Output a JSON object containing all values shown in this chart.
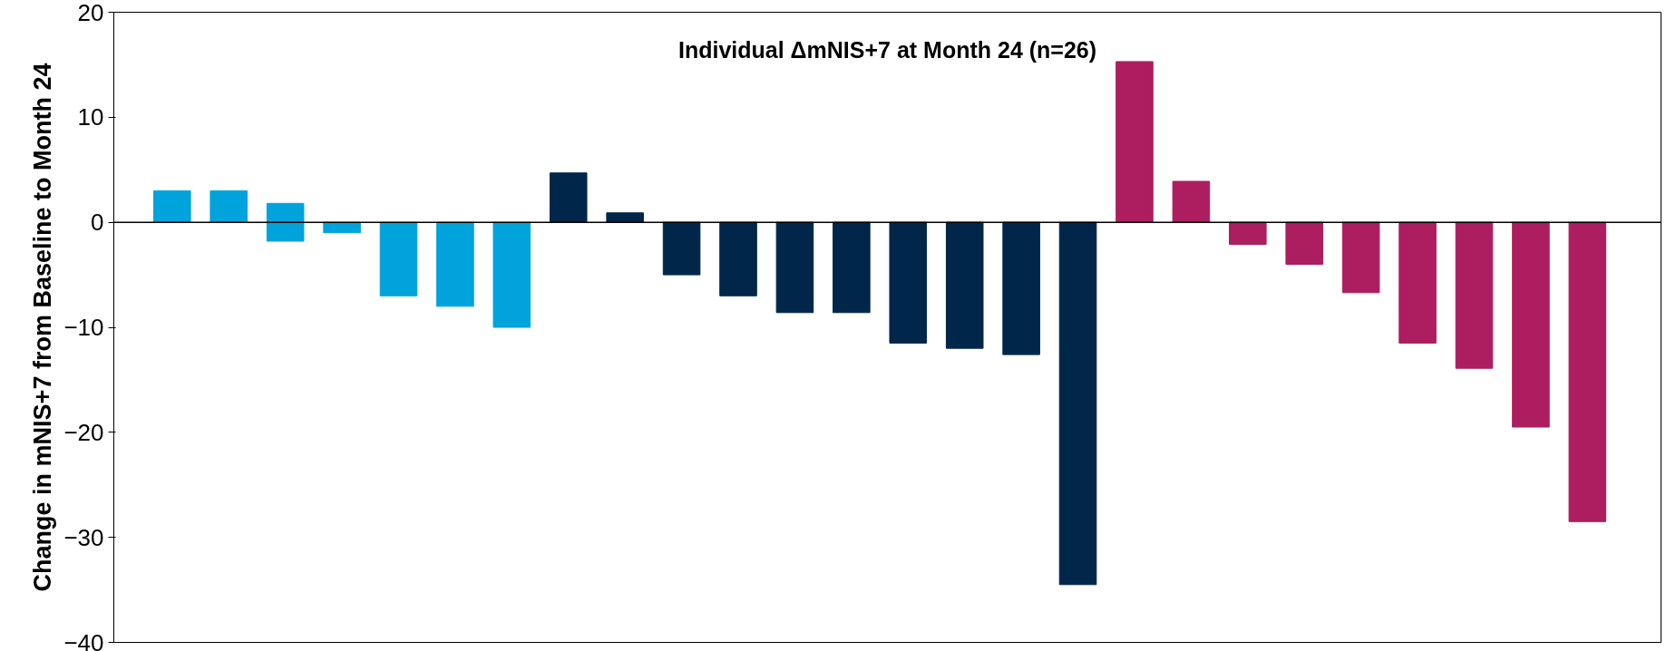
{
  "chart_data": {
    "type": "bar",
    "title": "Individual ΔmNIS+7 at Month 24 (n=26)",
    "ylabel": "Change in mNIS+7 from Baseline to Month 24",
    "categories": [
      null,
      null,
      null,
      null,
      null,
      null,
      null,
      null,
      null,
      null,
      null,
      null,
      null,
      null,
      null,
      null,
      null,
      null,
      null,
      null,
      null,
      null,
      null,
      null,
      null,
      null
    ],
    "base": [
      0,
      0,
      -1.8,
      0,
      0,
      0,
      0,
      0,
      0,
      0,
      0,
      0,
      0,
      0,
      0,
      0,
      0,
      0,
      0,
      0,
      0,
      0,
      0,
      0,
      0,
      0
    ],
    "values": [
      3,
      3,
      3.6,
      -1,
      -7,
      -8,
      -10,
      4.7,
      0.9,
      -5,
      -7,
      -8.6,
      -8.6,
      -11.5,
      -12,
      -12.6,
      -34.5,
      15.3,
      3.9,
      -2.1,
      -4,
      -6.7,
      -11.5,
      -13.9,
      -19.5,
      -28.5
    ],
    "colors": [
      "#00a3dc",
      "#00a3dc",
      "#00a3dc",
      "#00a3dc",
      "#00a3dc",
      "#00a3dc",
      "#00a3dc",
      "#00264a",
      "#00264a",
      "#00264a",
      "#00264a",
      "#00264a",
      "#00264a",
      "#00264a",
      "#00264a",
      "#00264a",
      "#00264a",
      "#ac1e5f",
      "#ac1e5f",
      "#ac1e5f",
      "#ac1e5f",
      "#ac1e5f",
      "#ac1e5f",
      "#ac1e5f",
      "#ac1e5f",
      "#ac1e5f"
    ],
    "ylim": [
      -40,
      20
    ],
    "yticks": [
      -40,
      -30,
      -20,
      -10,
      0,
      10,
      20
    ],
    "grid": false,
    "tick_labels": "y",
    "ref_lines": [
      {
        "axis": "y",
        "value": 0,
        "color": "#000000"
      }
    ]
  }
}
